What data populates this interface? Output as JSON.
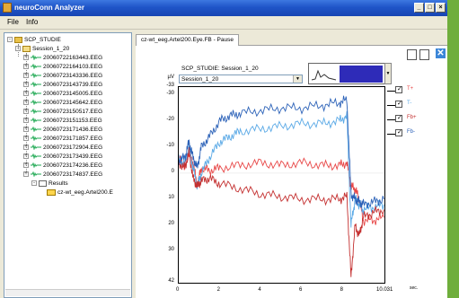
{
  "window": {
    "title": "neuroConn Analyzer",
    "min": "_",
    "max": "□",
    "close": "×"
  },
  "menu": {
    "items": [
      "File",
      "Info"
    ]
  },
  "tree": {
    "root": "SCP_STUDIE",
    "session": "Session_1_20",
    "files": [
      "20060722163443.EEG",
      "20060722164103.EEG",
      "20060723143336.EEG",
      "20060723143739.EEG",
      "20060723145005.EEG",
      "20060723145642.EEG",
      "20060723150517.EEG",
      "20060723151153.EEG",
      "20060723171436.EEG",
      "20060723171857.EEG",
      "20060723172904.EEG",
      "20060723173439.EEG",
      "20060723174236.EEG",
      "20060723174837.EEG"
    ],
    "results": "Results",
    "result_file": "cz-wt_eeg.Artel200.E"
  },
  "tab": {
    "label": "cz-wt_eeg.Artel200.Eye.FB - Pause"
  },
  "plot": {
    "title": "SCP_STUDIE: Session_1_20",
    "combo_value": "Session_1_20",
    "unit_y": "µV",
    "unit_x": "sec."
  },
  "chart_data": {
    "type": "line",
    "ylabel": "µV",
    "xlabel": "sec.",
    "y_ticks": [
      "-33",
      "-30",
      "-20",
      "-10",
      "0",
      "10",
      "20",
      "30",
      "42"
    ],
    "x_ticks": [
      "0",
      "2",
      "4",
      "6",
      "8",
      "10.031"
    ],
    "y_inverted": true,
    "ylim": [
      -33,
      42
    ],
    "xlim": [
      0,
      10.031
    ],
    "series": [
      {
        "name": "T+",
        "color": "#e84848",
        "x": [
          0,
          0.3,
          0.5,
          0.7,
          0.9,
          1.1,
          1.5,
          2,
          3,
          4,
          5,
          6,
          7,
          7.8,
          8.2,
          8.4,
          8.6,
          8.8,
          9,
          9.5,
          10
        ],
        "y": [
          -5,
          -3,
          -8,
          -4,
          5,
          -2,
          -1,
          -2,
          -3,
          -4,
          -3,
          -4,
          -3,
          -3,
          -4,
          5,
          6,
          10,
          18,
          18,
          17
        ]
      },
      {
        "name": "T-",
        "color": "#5aa9e6",
        "x": [
          0,
          0.3,
          0.5,
          0.7,
          0.9,
          1.1,
          1.5,
          2,
          2.5,
          3,
          4,
          5,
          6,
          7,
          7.8,
          8.2,
          8.4,
          8.6,
          8.8,
          9,
          9.5,
          10
        ],
        "y": [
          -5,
          -4,
          -10,
          -2,
          5,
          0,
          -6,
          -12,
          -14,
          -16,
          -17,
          -18,
          -19,
          -19,
          -20,
          -22,
          20,
          10,
          12,
          14,
          13,
          12
        ]
      },
      {
        "name": "Fb+",
        "color": "#c43030",
        "x": [
          0,
          0.3,
          0.5,
          0.7,
          0.9,
          1.1,
          1.5,
          2,
          3,
          4,
          5,
          6,
          7,
          7.8,
          8.2,
          8.4,
          8.6,
          8.8,
          9,
          9.5,
          10
        ],
        "y": [
          -4,
          -2,
          -8,
          2,
          5,
          3,
          2,
          4,
          6,
          8,
          9,
          10,
          10,
          10,
          9,
          40,
          20,
          24,
          17,
          15,
          14
        ]
      },
      {
        "name": "Fb-",
        "color": "#2c62b8",
        "x": [
          0,
          0.3,
          0.5,
          0.7,
          0.9,
          1.1,
          1.5,
          2,
          2.5,
          3,
          4,
          5,
          6,
          7,
          7.8,
          8.2,
          8.4,
          8.6,
          8.8,
          9,
          9.5,
          10
        ],
        "y": [
          -5,
          -6,
          -12,
          -6,
          -2,
          -10,
          -14,
          -20,
          -22,
          -23,
          -24,
          -25,
          -25,
          -26,
          -27,
          -28,
          8,
          10,
          11,
          12,
          11,
          10
        ]
      }
    ],
    "legend": [
      "T+",
      "T-",
      "Fb+",
      "Fb-"
    ],
    "legend_colors": [
      "#e84848",
      "#5aa9e6",
      "#c43030",
      "#2c62b8"
    ]
  }
}
